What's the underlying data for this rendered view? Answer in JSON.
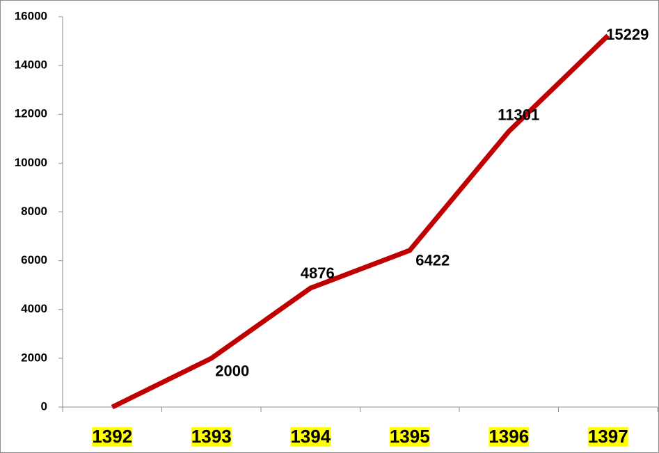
{
  "chart_data": {
    "type": "line",
    "categories": [
      "1392",
      "1393",
      "1394",
      "1395",
      "1396",
      "1397"
    ],
    "series": [
      {
        "name": "series",
        "color": "#c00000",
        "values": [
          0,
          2000,
          4876,
          6422,
          11301,
          15229
        ],
        "value_labels": [
          null,
          "2000",
          "4876",
          "6422",
          "11301",
          "15229"
        ]
      }
    ],
    "ylim": [
      0,
      16000
    ],
    "yticks": [
      0,
      2000,
      4000,
      6000,
      8000,
      10000,
      12000,
      14000,
      16000
    ],
    "category_highlight": "#ffff00",
    "grid": false
  }
}
